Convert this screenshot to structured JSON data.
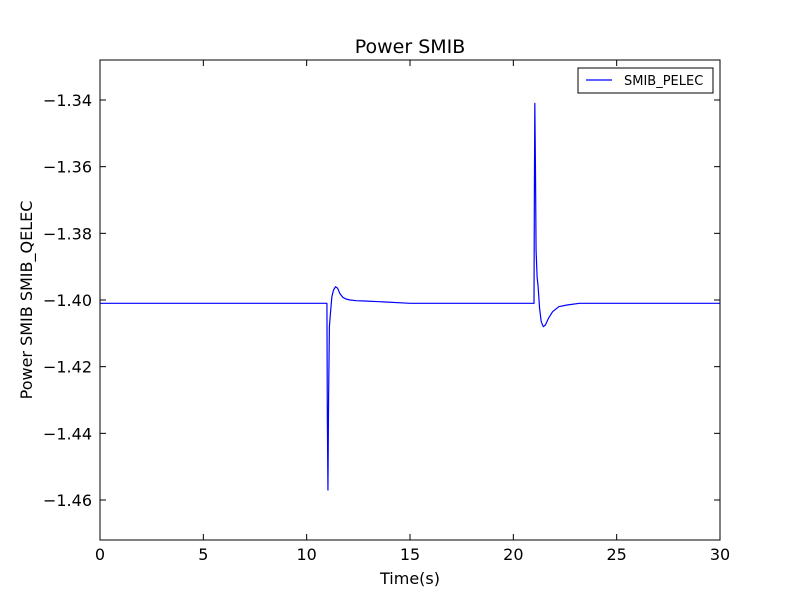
{
  "chart_data": {
    "type": "line",
    "title": "Power SMIB",
    "xlabel": "Time(s)",
    "ylabel": "Power SMIB SMIB_QELEC",
    "xlim": [
      0,
      30
    ],
    "ylim": [
      -1.472,
      -1.328
    ],
    "x_ticks": [
      0,
      5,
      10,
      15,
      20,
      25,
      30
    ],
    "x_tick_labels": [
      "0",
      "5",
      "10",
      "15",
      "20",
      "25",
      "30"
    ],
    "y_ticks": [
      -1.34,
      -1.36,
      -1.38,
      -1.4,
      -1.42,
      -1.44,
      -1.46
    ],
    "y_tick_labels": [
      "−1.34",
      "−1.36",
      "−1.38",
      "−1.40",
      "−1.42",
      "−1.44",
      "−1.46"
    ],
    "grid": false,
    "legend_position": "top-right",
    "series": [
      {
        "name": "SMIB_PELEC",
        "color": "#0000ff",
        "x": [
          0,
          10.98,
          11.0,
          11.03,
          11.06,
          11.1,
          11.15,
          11.22,
          11.3,
          11.4,
          11.5,
          11.6,
          11.75,
          11.9,
          12.1,
          12.4,
          12.8,
          13.5,
          15.0,
          17.0,
          21.0,
          21.02,
          21.04,
          21.07,
          21.1,
          21.15,
          21.2,
          21.27,
          21.35,
          21.45,
          21.55,
          21.7,
          21.9,
          22.2,
          22.6,
          23.2,
          24.0,
          26.0,
          30.0
        ],
        "y": [
          -1.401,
          -1.401,
          -1.435,
          -1.457,
          -1.43,
          -1.408,
          -1.404,
          -1.399,
          -1.397,
          -1.396,
          -1.3965,
          -1.398,
          -1.3992,
          -1.3997,
          -1.4,
          -1.4002,
          -1.4003,
          -1.4005,
          -1.401,
          -1.401,
          -1.401,
          -1.365,
          -1.341,
          -1.36,
          -1.385,
          -1.393,
          -1.396,
          -1.4025,
          -1.4065,
          -1.408,
          -1.4075,
          -1.4055,
          -1.4035,
          -1.402,
          -1.4015,
          -1.401,
          -1.401,
          -1.401,
          -1.401
        ]
      }
    ]
  }
}
